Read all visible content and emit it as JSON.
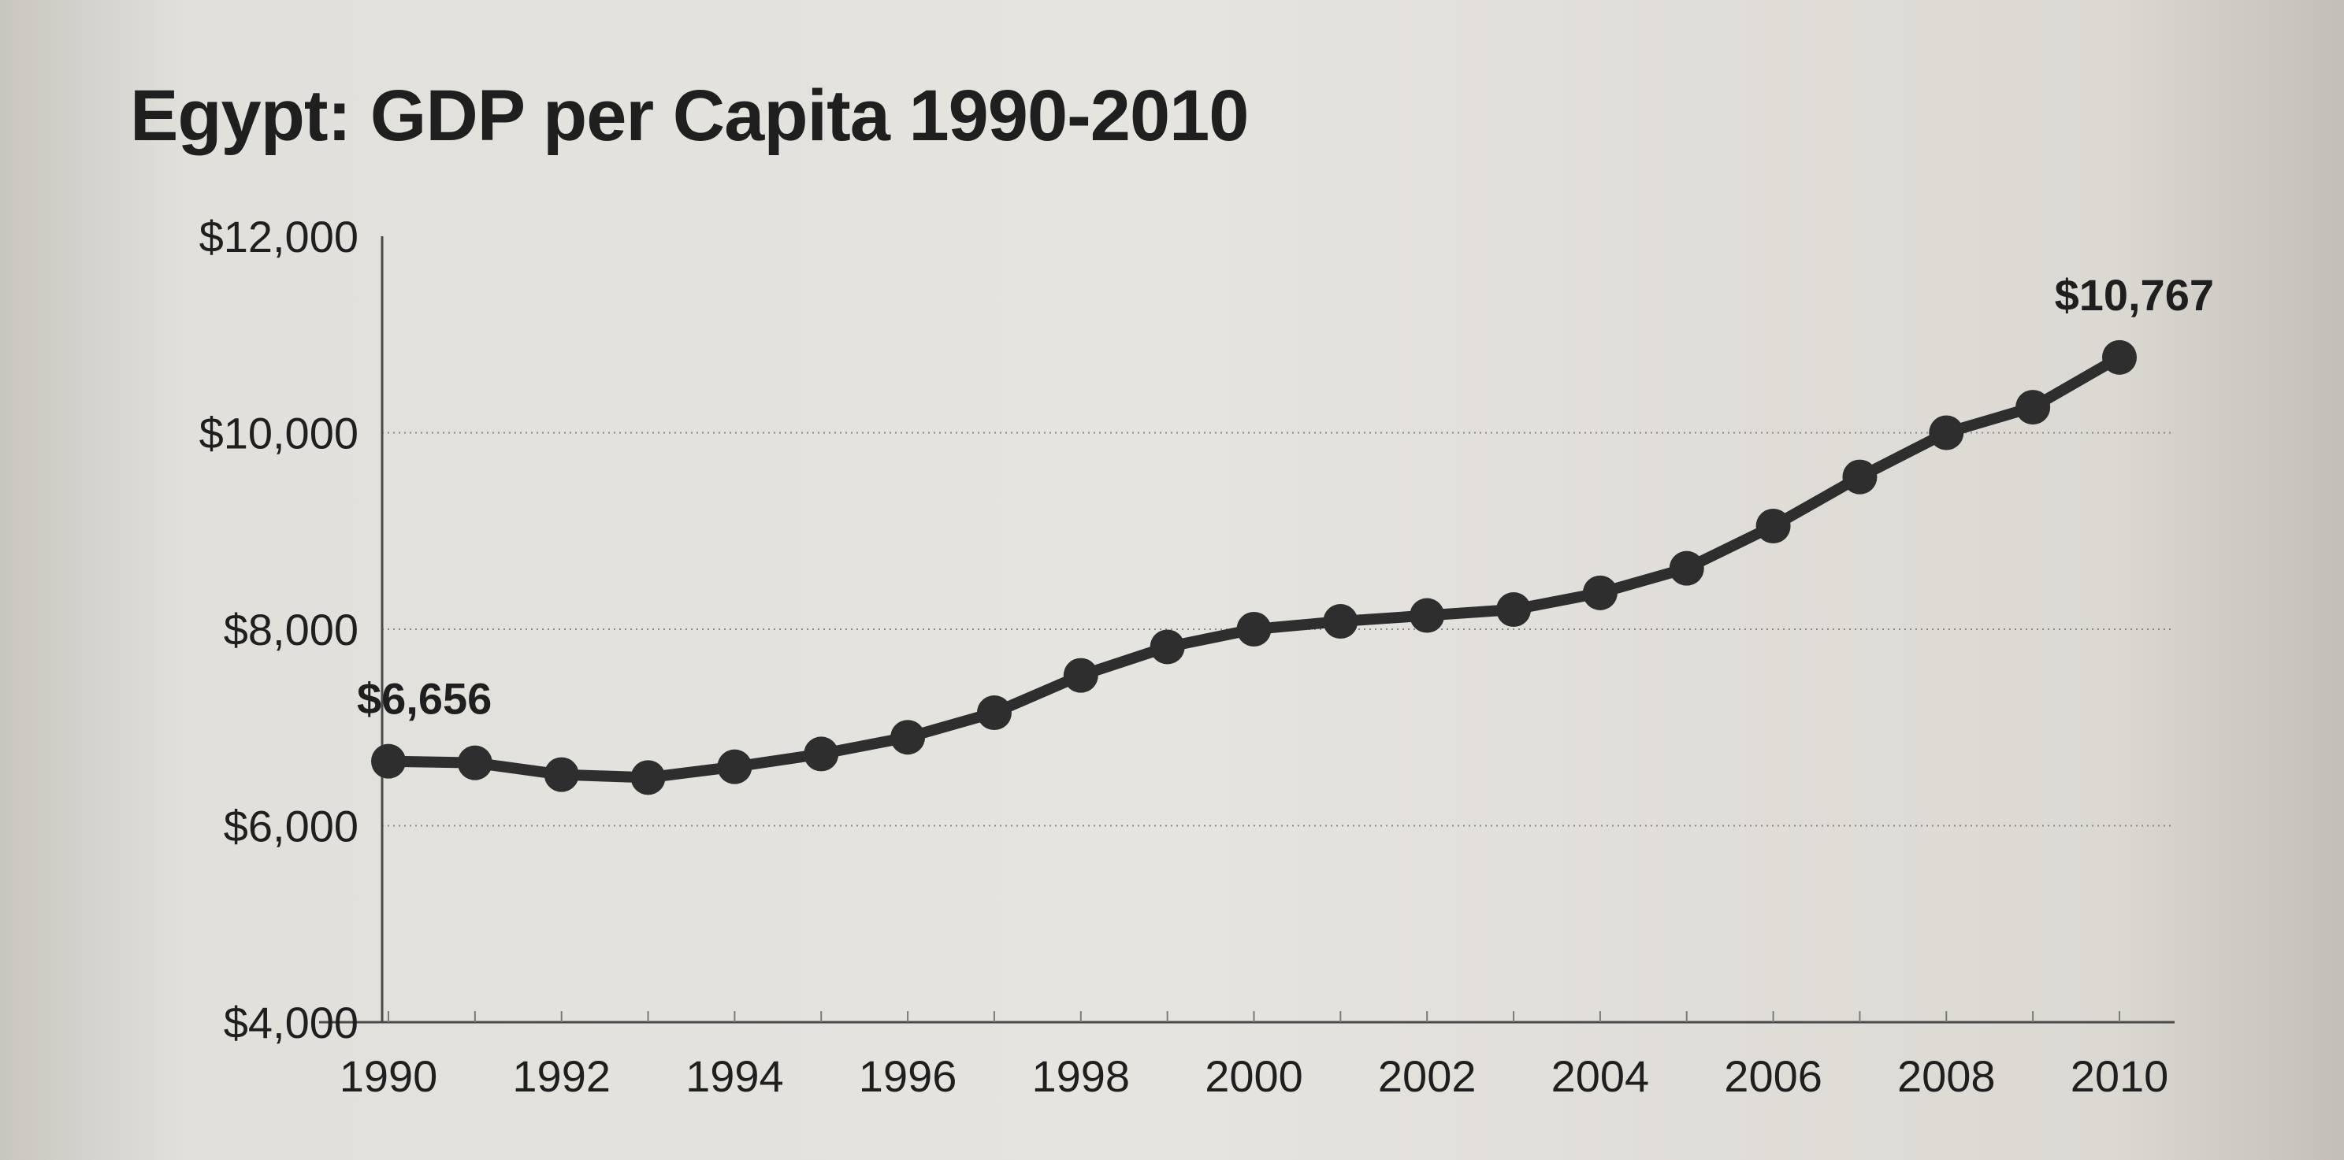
{
  "chart_data": {
    "type": "line",
    "title": "Egypt: GDP per Capita 1990-2010",
    "xlabel": "",
    "ylabel": "",
    "x": [
      1990,
      1991,
      1992,
      1993,
      1994,
      1995,
      1996,
      1997,
      1998,
      1999,
      2000,
      2001,
      2002,
      2003,
      2004,
      2005,
      2006,
      2007,
      2008,
      2009,
      2010
    ],
    "values": [
      6656,
      6640,
      6520,
      6490,
      6600,
      6730,
      6900,
      7150,
      7530,
      7820,
      8000,
      8080,
      8140,
      8200,
      8370,
      8620,
      9050,
      9550,
      10000,
      10260,
      10767
    ],
    "xlim": [
      1990,
      2010
    ],
    "ylim": [
      4000,
      12000
    ],
    "x_ticks": [
      "1990",
      "1992",
      "1994",
      "1996",
      "1998",
      "2000",
      "2002",
      "2004",
      "2006",
      "2008",
      "2010"
    ],
    "y_ticks": [
      {
        "value": 4000,
        "label": "$4,000"
      },
      {
        "value": 6000,
        "label": "$6,000"
      },
      {
        "value": 8000,
        "label": "$8,000"
      },
      {
        "value": 10000,
        "label": "$10,000"
      },
      {
        "value": 12000,
        "label": "$12,000"
      }
    ],
    "gridlines": [
      6000,
      8000,
      10000
    ],
    "grid": true,
    "legend": false,
    "annotations": [
      {
        "x": 1990,
        "label": "$6,656"
      },
      {
        "x": 2010,
        "label": "$10,767"
      }
    ],
    "line_color": "#2e2e2e",
    "grid_color": "#8a8a8a",
    "text_color": "#1f1f1f"
  }
}
